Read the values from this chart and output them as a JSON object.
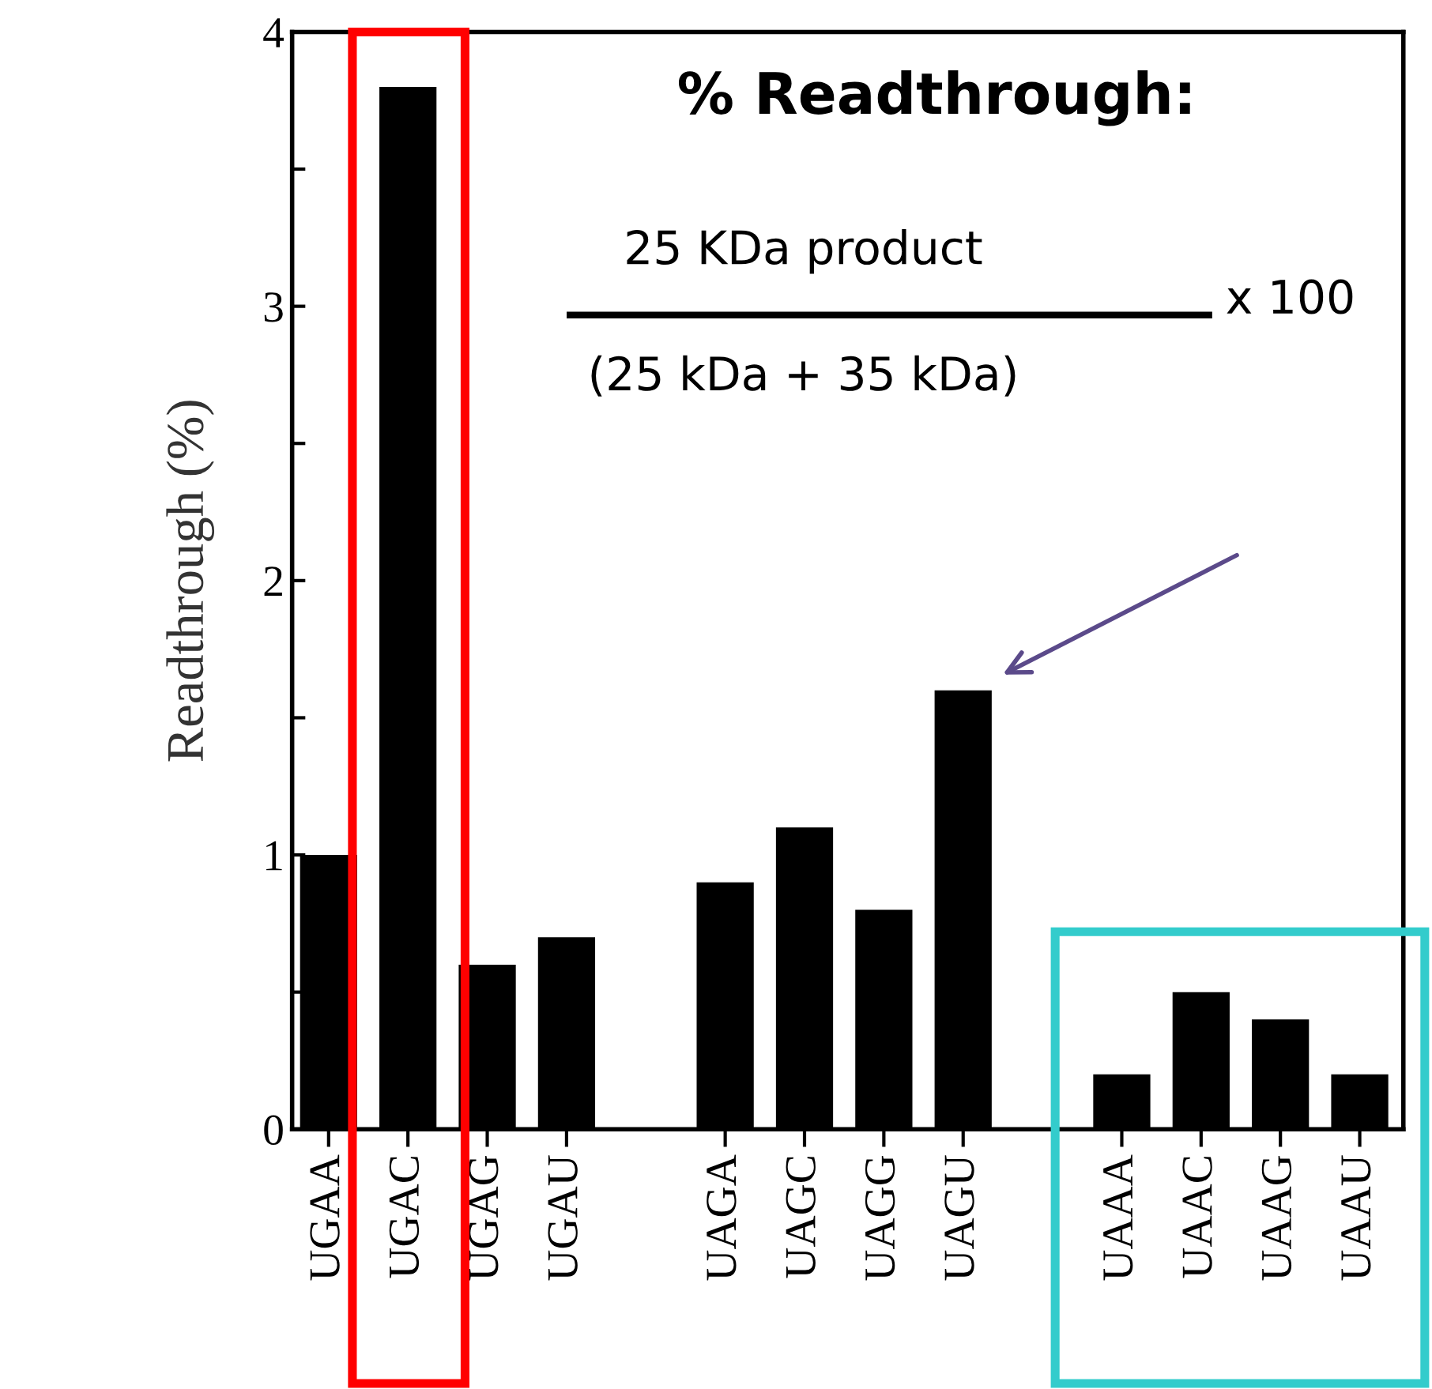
{
  "chart_data": {
    "type": "bar",
    "title": "% Readthrough:",
    "ylabel": "Readthrough (%)",
    "categories": [
      "UGAA",
      "UGAC",
      "UGAG",
      "UGAU",
      null,
      "UAGA",
      "UAGC",
      "UAGG",
      "UAGU",
      null,
      "UAAA",
      "UAAC",
      "UAAG",
      "UAAU"
    ],
    "values": [
      1.0,
      3.8,
      0.6,
      0.7,
      null,
      0.9,
      1.1,
      0.8,
      1.6,
      null,
      0.2,
      0.5,
      0.4,
      0.2
    ],
    "color": "#000000",
    "ylim": [
      0,
      4
    ],
    "yticks": [
      0,
      {
        "value": 0.5,
        "label": null
      },
      1,
      {
        "value": 1.5,
        "label": null
      },
      2,
      {
        "value": 2.5,
        "label": null
      },
      3,
      {
        "value": 3.5,
        "label": null
      },
      4
    ],
    "annotations": [
      "25 KDa product",
      "(25 kDa + 35 kDa)",
      "x 100"
    ],
    "grid": false,
    "legend": false
  }
}
